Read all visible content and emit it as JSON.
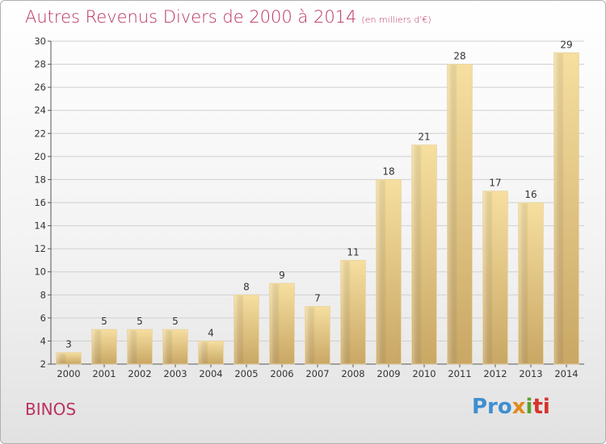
{
  "title": "Autres Revenus Divers de 2000 à 2014",
  "subtitle": "(en milliers d'€)",
  "commune": "BINOS",
  "logo": {
    "p1": "Pro",
    "p2": "x",
    "p3": "i",
    "p4": "ti"
  },
  "colors": {
    "title": "#b9335f",
    "bar_light": "#f6dfa0",
    "bar_dark": "#c9a765",
    "grid": "#cfcfcf"
  },
  "chart_data": {
    "type": "bar",
    "title": "Autres Revenus Divers de 2000 à 2014",
    "subtitle": "(en milliers d'€)",
    "xlabel": "",
    "ylabel": "",
    "categories": [
      "2000",
      "2001",
      "2002",
      "2003",
      "2004",
      "2005",
      "2006",
      "2007",
      "2008",
      "2009",
      "2010",
      "2011",
      "2012",
      "2013",
      "2014"
    ],
    "values": [
      3,
      5,
      5,
      5,
      4,
      8,
      9,
      7,
      11,
      18,
      21,
      28,
      17,
      16,
      29
    ],
    "ylim": [
      2,
      30
    ],
    "yticks": [
      2,
      4,
      6,
      8,
      10,
      12,
      14,
      16,
      18,
      20,
      22,
      24,
      26,
      28,
      30
    ],
    "grid": true,
    "legend": "none"
  }
}
